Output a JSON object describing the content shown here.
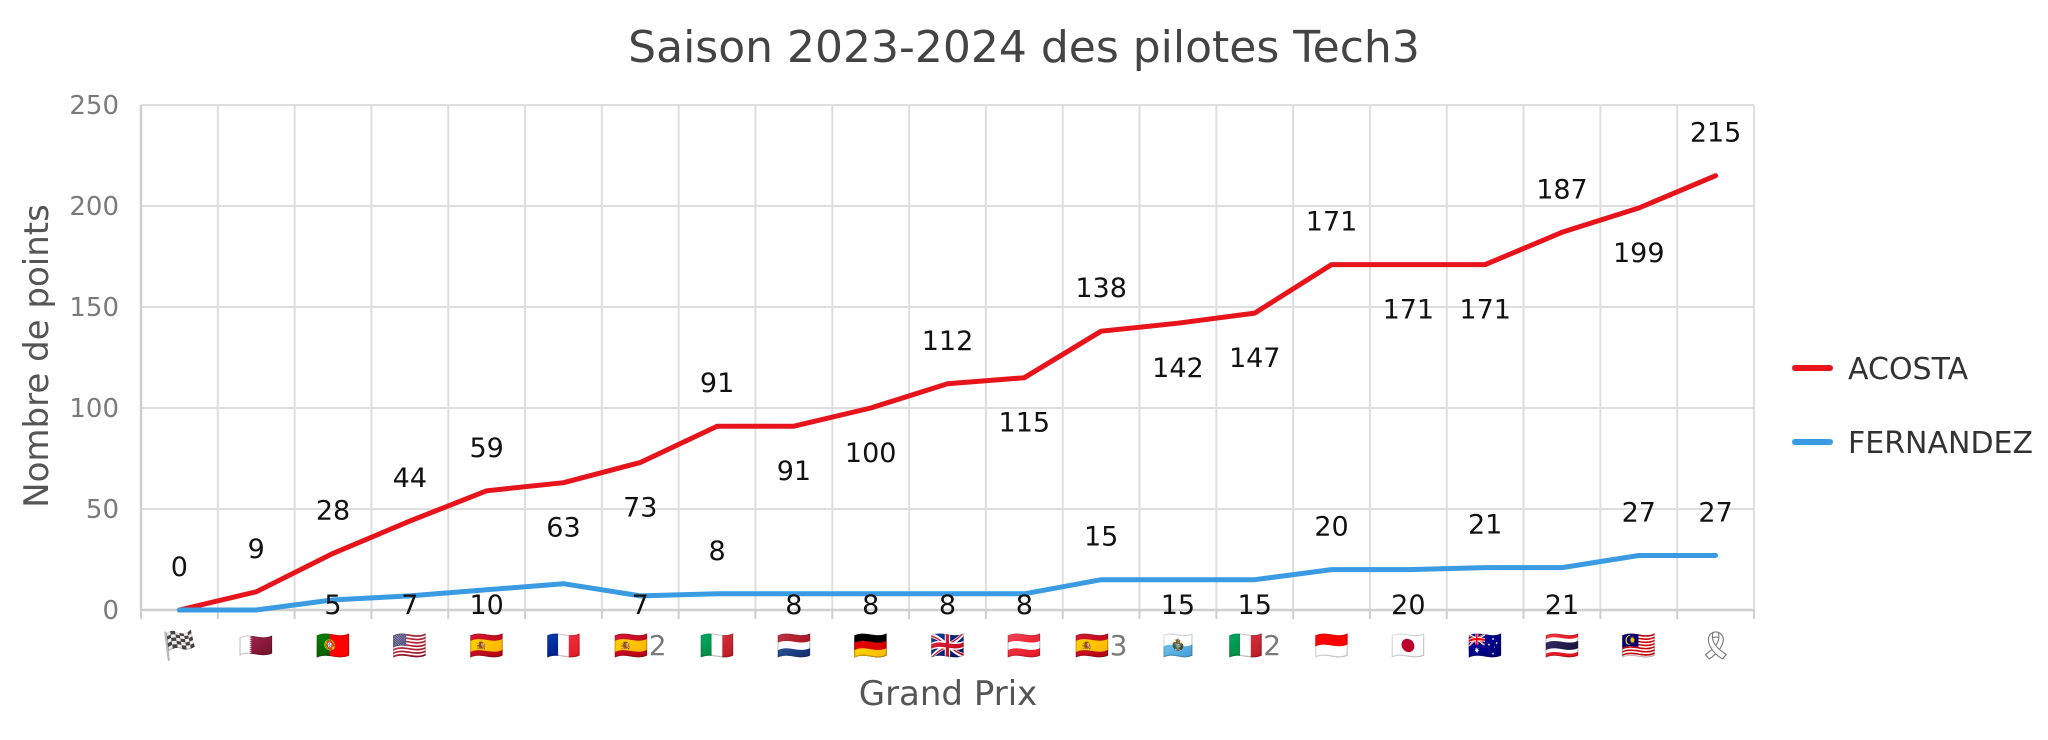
{
  "chart_data": {
    "type": "line",
    "title": "Saison 2023-2024 des pilotes Tech3",
    "xlabel": "Grand Prix",
    "ylabel": "Nombre de points",
    "ylim": [
      0,
      250
    ],
    "yticks": [
      0,
      50,
      100,
      150,
      200,
      250
    ],
    "grid": true,
    "legend_position": "right",
    "categories": [
      "🏁",
      "🇶🇦",
      "🇵🇹",
      "🇺🇸",
      "🇪🇸",
      "🇫🇷",
      "🇪🇸2",
      "🇮🇹",
      "🇳🇱",
      "🇩🇪",
      "🇬🇧",
      "🇦🇹",
      "🇪🇸3",
      "🇸🇲",
      "🇮🇹2",
      "🇮🇩",
      "🇯🇵",
      "🇦🇺",
      "🇹🇭",
      "🇲🇾",
      "🎗"
    ],
    "series": [
      {
        "name": "ACOSTA",
        "color": "#e8141b",
        "values": [
          0,
          9,
          28,
          44,
          59,
          63,
          73,
          91,
          91,
          100,
          112,
          115,
          138,
          142,
          147,
          171,
          171,
          171,
          187,
          199,
          215
        ],
        "label_above": [
          true,
          true,
          true,
          true,
          true,
          false,
          false,
          true,
          false,
          false,
          true,
          false,
          true,
          false,
          false,
          true,
          false,
          false,
          true,
          false,
          true
        ]
      },
      {
        "name": "FERNANDEZ",
        "color": "#3a9be2",
        "values": [
          0,
          0,
          5,
          7,
          10,
          13,
          7,
          8,
          8,
          8,
          8,
          8,
          15,
          15,
          15,
          20,
          20,
          21,
          21,
          27,
          27
        ],
        "label_above": [
          false,
          false,
          false,
          false,
          false,
          false,
          false,
          true,
          false,
          false,
          false,
          false,
          true,
          false,
          false,
          true,
          false,
          true,
          false,
          true,
          true
        ],
        "labels": [
          "",
          "",
          "5",
          "7",
          "10",
          "",
          "7",
          "8",
          "8",
          "8",
          "8",
          "8",
          "15",
          "15",
          "15",
          "20",
          "20",
          "21",
          "21",
          "27",
          "27"
        ]
      }
    ]
  }
}
